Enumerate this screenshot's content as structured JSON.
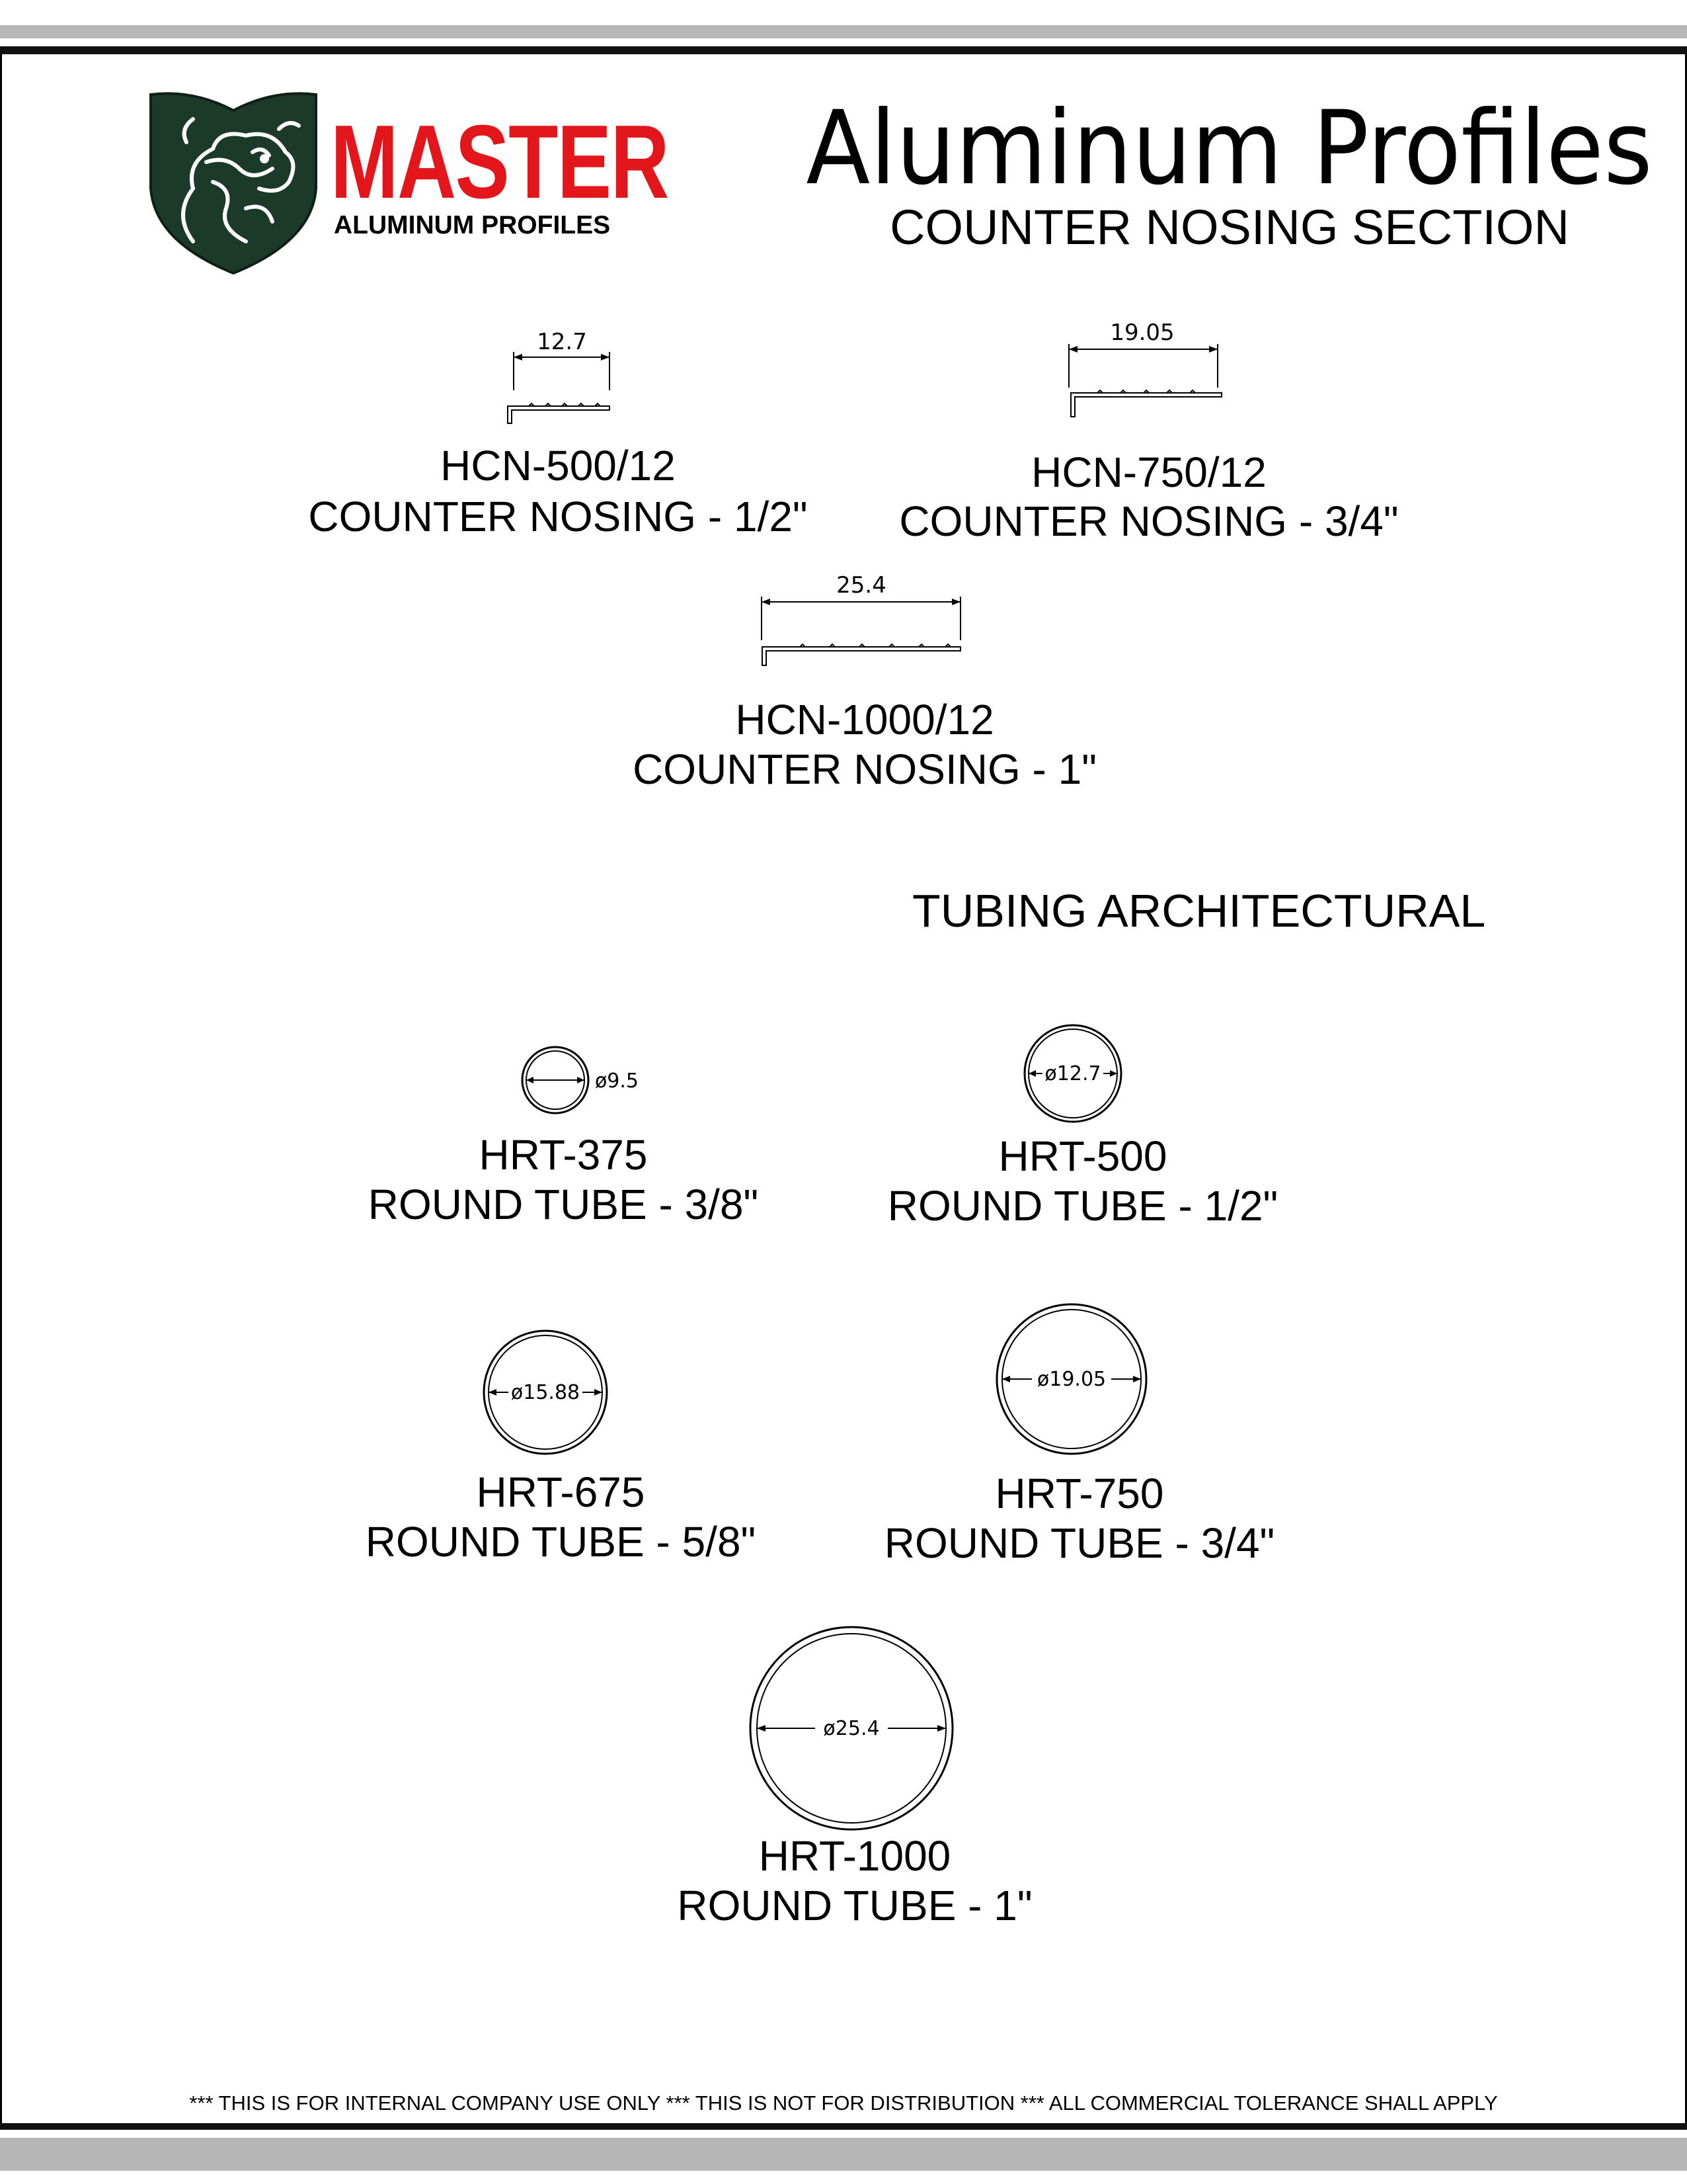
{
  "header": {
    "brand_name": "MASTER",
    "brand_tagline": "ALUMINUM PROFILES",
    "title": "Aluminum Profiles",
    "subtitle": "COUNTER NOSING SECTION",
    "logo_icon": "dragon-shield-logo",
    "colors": {
      "brand_red": "#e3161b",
      "shield_green": "#1c3a2a",
      "rule_gray": "#b7b7b7"
    }
  },
  "counter_nosing": [
    {
      "dimension": "12.7",
      "code": "HCN-500/12",
      "description": "COUNTER NOSING - 1/2\""
    },
    {
      "dimension": "19.05",
      "code": "HCN-750/12",
      "description": "COUNTER NOSING - 3/4\""
    },
    {
      "dimension": "25.4",
      "code": "HCN-1000/12",
      "description": "COUNTER NOSING - 1\""
    }
  ],
  "tubing": {
    "section_title": "TUBING ARCHITECTURAL",
    "items": [
      {
        "dimension": "ø9.5",
        "code": "HRT-375",
        "description": "ROUND TUBE - 3/8\""
      },
      {
        "dimension": "ø12.7",
        "code": "HRT-500",
        "description": "ROUND TUBE - 1/2\""
      },
      {
        "dimension": "ø15.88",
        "code": "HRT-675",
        "description": "ROUND TUBE - 5/8\""
      },
      {
        "dimension": "ø19.05",
        "code": "HRT-750",
        "description": "ROUND TUBE - 3/4\""
      },
      {
        "dimension": "ø25.4",
        "code": "HRT-1000",
        "description": "ROUND TUBE - 1\""
      }
    ]
  },
  "footer": {
    "notice": "*** THIS IS FOR INTERNAL COMPANY USE ONLY *** THIS IS NOT FOR DISTRIBUTION *** ALL COMMERCIAL TOLERANCE SHALL APPLY"
  }
}
